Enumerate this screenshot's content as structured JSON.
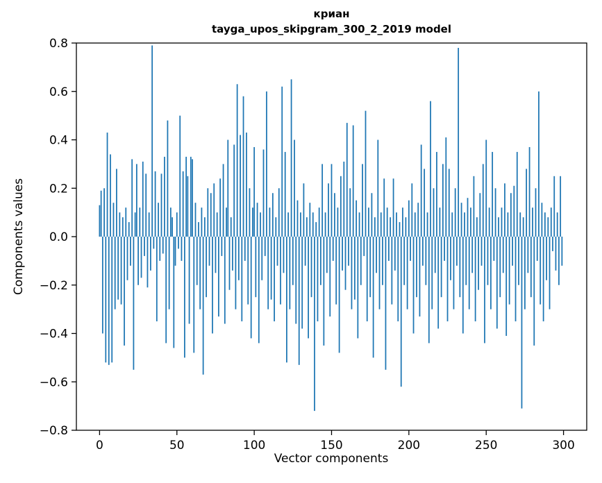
{
  "chart_data": {
    "type": "bar",
    "title": "криан",
    "subtitle": "tayga_upos_skipgram_300_2_2019 model",
    "xlabel": "Vector components",
    "ylabel": "Components values",
    "xlim": [
      -15,
      315
    ],
    "ylim": [
      -0.8,
      0.8
    ],
    "xticks": [
      0,
      50,
      100,
      150,
      200,
      250,
      300
    ],
    "yticks": [
      -0.8,
      -0.6,
      -0.4,
      -0.2,
      0.0,
      0.2,
      0.4,
      0.6,
      0.8
    ],
    "grid": false,
    "legend": "none",
    "bar_color": "#1f77b4",
    "axis_color": "#000000",
    "values": [
      0.13,
      0.19,
      -0.4,
      0.2,
      -0.52,
      0.43,
      -0.53,
      0.34,
      -0.52,
      0.14,
      -0.3,
      0.28,
      -0.26,
      0.1,
      -0.28,
      0.08,
      -0.45,
      0.12,
      -0.18,
      0.06,
      -0.12,
      0.32,
      -0.55,
      0.1,
      0.3,
      -0.2,
      0.12,
      -0.17,
      0.31,
      -0.08,
      0.26,
      -0.21,
      0.1,
      -0.14,
      0.79,
      -0.05,
      0.27,
      -0.35,
      0.14,
      -0.1,
      0.26,
      -0.07,
      0.33,
      -0.44,
      0.48,
      -0.3,
      0.12,
      0.08,
      -0.46,
      -0.12,
      0.1,
      -0.05,
      0.5,
      -0.1,
      0.27,
      -0.5,
      0.33,
      0.25,
      -0.36,
      0.33,
      0.32,
      -0.48,
      0.14,
      -0.2,
      0.06,
      -0.3,
      0.12,
      -0.57,
      0.08,
      -0.25,
      0.2,
      -0.12,
      0.18,
      -0.4,
      0.22,
      -0.15,
      0.1,
      -0.33,
      0.24,
      -0.08,
      0.3,
      -0.36,
      0.12,
      0.4,
      -0.22,
      0.08,
      -0.14,
      0.38,
      -0.3,
      0.63,
      -0.18,
      0.42,
      -0.35,
      0.58,
      -0.1,
      0.43,
      -0.28,
      0.2,
      -0.42,
      0.12,
      0.37,
      -0.25,
      0.14,
      -0.44,
      0.1,
      -0.18,
      0.36,
      -0.08,
      0.6,
      -0.3,
      0.12,
      -0.26,
      0.18,
      -0.35,
      0.08,
      -0.12,
      0.2,
      -0.28,
      0.62,
      -0.15,
      0.35,
      -0.52,
      0.1,
      -0.3,
      0.65,
      -0.2,
      0.4,
      -0.36,
      0.15,
      -0.53,
      0.1,
      -0.38,
      0.22,
      -0.12,
      0.08,
      -0.42,
      0.14,
      -0.25,
      0.1,
      -0.72,
      0.06,
      -0.35,
      0.12,
      -0.2,
      0.3,
      -0.45,
      0.1,
      -0.15,
      0.22,
      -0.33,
      0.3,
      -0.1,
      0.18,
      -0.28,
      0.12,
      -0.48,
      0.25,
      -0.14,
      0.31,
      -0.22,
      0.47,
      -0.12,
      0.2,
      -0.3,
      0.46,
      -0.26,
      0.15,
      -0.42,
      0.1,
      -0.2,
      0.3,
      -0.08,
      0.52,
      -0.35,
      0.12,
      -0.25,
      0.18,
      -0.5,
      0.08,
      -0.15,
      0.4,
      -0.3,
      0.1,
      -0.2,
      0.24,
      -0.55,
      0.12,
      -0.1,
      0.08,
      -0.28,
      0.24,
      -0.14,
      0.1,
      -0.35,
      0.06,
      -0.62,
      0.12,
      -0.2,
      0.08,
      -0.3,
      0.15,
      -0.1,
      0.22,
      -0.4,
      0.1,
      -0.25,
      0.14,
      -0.33,
      0.38,
      -0.12,
      0.28,
      -0.2,
      0.1,
      -0.44,
      0.56,
      -0.3,
      0.2,
      -0.15,
      0.35,
      -0.38,
      0.12,
      -0.25,
      0.3,
      -0.1,
      0.41,
      -0.35,
      0.28,
      -0.18,
      0.1,
      -0.3,
      0.2,
      -0.12,
      0.78,
      -0.25,
      0.14,
      -0.4,
      0.1,
      -0.2,
      0.16,
      -0.3,
      0.12,
      -0.15,
      0.25,
      -0.35,
      0.08,
      -0.22,
      0.18,
      -0.12,
      0.3,
      -0.44,
      0.4,
      -0.2,
      0.12,
      -0.3,
      0.35,
      -0.1,
      0.2,
      -0.38,
      0.08,
      -0.25,
      0.12,
      -0.15,
      0.22,
      -0.41,
      0.1,
      -0.28,
      0.18,
      -0.12,
      0.21,
      -0.35,
      0.35,
      -0.2,
      0.1,
      -0.71,
      0.08,
      -0.3,
      0.28,
      -0.15,
      0.37,
      -0.25,
      0.12,
      -0.45,
      0.2,
      -0.1,
      0.6,
      -0.28,
      0.14,
      -0.35,
      0.1,
      -0.18,
      0.08,
      -0.3,
      0.12,
      -0.06,
      0.25,
      -0.14,
      0.1,
      -0.2,
      0.25,
      -0.12
    ]
  }
}
